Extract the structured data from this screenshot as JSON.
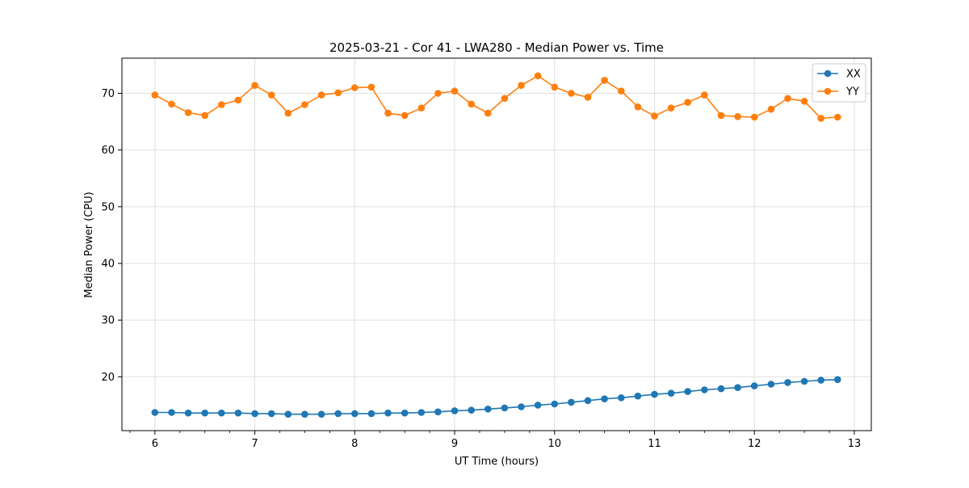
{
  "chart_data": {
    "type": "line",
    "title": "2025-03-21 - Cor 41 - LWA280 - Median Power vs. Time",
    "xlabel": "UT Time (hours)",
    "ylabel": "Median Power (CPU)",
    "xlim": [
      5.67,
      13.17
    ],
    "ylim": [
      10.5,
      76.2
    ],
    "xticks": [
      6,
      7,
      8,
      9,
      10,
      11,
      12,
      13
    ],
    "xtick_labels": [
      "6",
      "7",
      "8",
      "9",
      "10",
      "11",
      "12",
      "13"
    ],
    "yticks": [
      20,
      30,
      40,
      50,
      60,
      70
    ],
    "ytick_labels": [
      "20",
      "30",
      "40",
      "50",
      "60",
      "70"
    ],
    "grid": true,
    "legend_position": "top-right",
    "x": [
      6.0,
      6.1667,
      6.3333,
      6.5,
      6.6667,
      6.8333,
      7.0,
      7.1667,
      7.3333,
      7.5,
      7.6667,
      7.8333,
      8.0,
      8.1667,
      8.3333,
      8.5,
      8.6667,
      8.8333,
      9.0,
      9.1667,
      9.3333,
      9.5,
      9.6667,
      9.8333,
      10.0,
      10.1667,
      10.3333,
      10.5,
      10.6667,
      10.8333,
      11.0,
      11.1667,
      11.3333,
      11.5,
      11.6667,
      11.8333,
      12.0,
      12.1667,
      12.3333,
      12.5,
      12.6667,
      12.8333
    ],
    "series": [
      {
        "name": "XX",
        "color": "#1f77b4",
        "values": [
          13.7,
          13.7,
          13.6,
          13.6,
          13.6,
          13.6,
          13.5,
          13.5,
          13.4,
          13.4,
          13.4,
          13.5,
          13.5,
          13.5,
          13.6,
          13.6,
          13.7,
          13.8,
          14.0,
          14.1,
          14.3,
          14.5,
          14.7,
          15.0,
          15.2,
          15.5,
          15.8,
          16.1,
          16.3,
          16.6,
          16.9,
          17.1,
          17.4,
          17.7,
          17.9,
          18.1,
          18.4,
          18.7,
          19.0,
          19.2,
          19.4,
          19.5
        ]
      },
      {
        "name": "YY",
        "color": "#ff7f0e",
        "values": [
          69.7,
          68.1,
          66.6,
          66.1,
          68.0,
          68.8,
          71.4,
          69.7,
          66.5,
          68.0,
          69.7,
          70.1,
          71.0,
          71.1,
          66.5,
          66.1,
          67.4,
          70.0,
          70.4,
          68.1,
          66.5,
          69.1,
          71.4,
          73.1,
          71.1,
          70.0,
          69.3,
          72.3,
          70.4,
          67.6,
          66.0,
          67.4,
          68.4,
          69.7,
          66.1,
          65.9,
          65.8,
          67.2,
          69.1,
          68.6,
          65.6,
          65.8
        ]
      }
    ]
  }
}
